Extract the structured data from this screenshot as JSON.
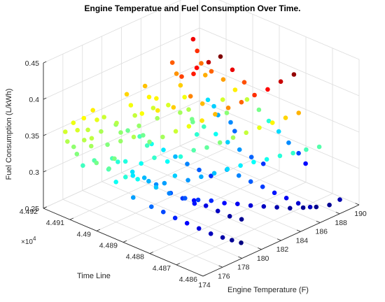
{
  "figure": {
    "title": "Engine Temperatue and Fuel Consumption Over Time."
  },
  "chart_data": {
    "type": "scatter",
    "title": "Engine Temperatue and Fuel Consumption Over Time.",
    "xlabel": "Engine Temperature (F)",
    "ylabel": "Time Line",
    "zlabel": "Fuel Consumption (L/kWh)",
    "x_ticks": [
      "174",
      "176",
      "178",
      "180",
      "182",
      "184",
      "186",
      "188",
      "190"
    ],
    "y_ticks": [
      "4.486",
      "4.487",
      "4.488",
      "4.489",
      "4.49",
      "4.491",
      "4.492"
    ],
    "y_exponent": "×10",
    "y_exponent_power": "4",
    "z_ticks": [
      "0.25",
      "0.3",
      "0.35",
      "0.4",
      "0.45"
    ],
    "xlim": [
      174,
      190
    ],
    "ylim": [
      44860,
      44920
    ],
    "zlim": [
      0.25,
      0.45
    ],
    "colormap": "jet",
    "grid": true,
    "points": [
      [
        174.5,
        44907,
        0.326
      ],
      [
        174.8,
        44903,
        0.334
      ],
      [
        175.0,
        44899,
        0.331
      ],
      [
        175.2,
        44913,
        0.338
      ],
      [
        175.4,
        44906,
        0.329
      ],
      [
        175.6,
        44895,
        0.322
      ],
      [
        175.9,
        44909,
        0.341
      ],
      [
        176.1,
        44901,
        0.335
      ],
      [
        176.3,
        44893,
        0.318
      ],
      [
        176.5,
        44911,
        0.345
      ],
      [
        176.7,
        44904,
        0.327
      ],
      [
        176.9,
        44897,
        0.313
      ],
      [
        177.1,
        44889,
        0.308
      ],
      [
        177.3,
        44908,
        0.336
      ],
      [
        177.5,
        44902,
        0.321
      ],
      [
        177.7,
        44894,
        0.305
      ],
      [
        177.9,
        44887,
        0.298
      ],
      [
        178.1,
        44906,
        0.339
      ],
      [
        178.3,
        44899,
        0.318
      ],
      [
        178.5,
        44891,
        0.302
      ],
      [
        178.7,
        44884,
        0.291
      ],
      [
        178.9,
        44904,
        0.343
      ],
      [
        179.1,
        44897,
        0.324
      ],
      [
        179.3,
        44890,
        0.309
      ],
      [
        179.5,
        44882,
        0.287
      ],
      [
        179.7,
        44901,
        0.336
      ],
      [
        179.9,
        44895,
        0.317
      ],
      [
        180.1,
        44888,
        0.301
      ],
      [
        180.3,
        44880,
        0.284
      ],
      [
        180.5,
        44899,
        0.341
      ],
      [
        180.7,
        44893,
        0.322
      ],
      [
        180.9,
        44886,
        0.304
      ],
      [
        181.1,
        44878,
        0.279
      ],
      [
        181.3,
        44897,
        0.347
      ],
      [
        181.5,
        44891,
        0.329
      ],
      [
        181.7,
        44884,
        0.307
      ],
      [
        181.9,
        44876,
        0.276
      ],
      [
        182.1,
        44895,
        0.352
      ],
      [
        182.3,
        44889,
        0.331
      ],
      [
        182.5,
        44882,
        0.311
      ],
      [
        182.7,
        44874,
        0.272
      ],
      [
        182.9,
        44893,
        0.358
      ],
      [
        183.1,
        44887,
        0.336
      ],
      [
        183.3,
        44880,
        0.314
      ],
      [
        183.5,
        44872,
        0.269
      ],
      [
        183.7,
        44891,
        0.365
      ],
      [
        183.9,
        44885,
        0.341
      ],
      [
        184.1,
        44878,
        0.317
      ],
      [
        184.3,
        44870,
        0.266
      ],
      [
        184.5,
        44889,
        0.372
      ],
      [
        184.7,
        44883,
        0.346
      ],
      [
        184.9,
        44876,
        0.319
      ],
      [
        185.1,
        44868,
        0.263
      ],
      [
        185.3,
        44887,
        0.378
      ],
      [
        185.5,
        44881,
        0.351
      ],
      [
        185.7,
        44874,
        0.322
      ],
      [
        185.9,
        44866,
        0.262
      ],
      [
        186.1,
        44885,
        0.386
      ],
      [
        186.3,
        44879,
        0.356
      ],
      [
        186.5,
        44872,
        0.324
      ],
      [
        186.7,
        44864,
        0.261
      ],
      [
        186.9,
        44883,
        0.392
      ],
      [
        187.1,
        44877,
        0.361
      ],
      [
        187.3,
        44870,
        0.327
      ],
      [
        187.5,
        44862,
        0.262
      ],
      [
        187.7,
        44881,
        0.401
      ],
      [
        187.9,
        44875,
        0.366
      ],
      [
        188.1,
        44868,
        0.329
      ],
      [
        188.3,
        44861,
        0.266
      ],
      [
        188.5,
        44879,
        0.409
      ],
      [
        175.3,
        44891,
        0.302
      ],
      [
        175.8,
        44886,
        0.294
      ],
      [
        176.2,
        44883,
        0.289
      ],
      [
        176.6,
        44880,
        0.283
      ],
      [
        177.0,
        44877,
        0.278
      ],
      [
        177.4,
        44874,
        0.273
      ],
      [
        177.8,
        44871,
        0.268
      ],
      [
        178.2,
        44868,
        0.265
      ],
      [
        178.6,
        44866,
        0.262
      ],
      [
        179.0,
        44864,
        0.259
      ],
      [
        179.4,
        44917,
        0.347
      ],
      [
        179.8,
        44914,
        0.339
      ],
      [
        180.2,
        44911,
        0.333
      ],
      [
        180.6,
        44908,
        0.327
      ],
      [
        181.0,
        44905,
        0.319
      ],
      [
        181.4,
        44902,
        0.313
      ],
      [
        181.8,
        44899,
        0.306
      ],
      [
        182.2,
        44896,
        0.298
      ],
      [
        182.6,
        44893,
        0.292
      ],
      [
        183.0,
        44890,
        0.286
      ],
      [
        183.4,
        44912,
        0.356
      ],
      [
        183.8,
        44909,
        0.349
      ],
      [
        184.2,
        44906,
        0.341
      ],
      [
        184.6,
        44903,
        0.334
      ],
      [
        185.0,
        44900,
        0.326
      ],
      [
        185.4,
        44897,
        0.318
      ],
      [
        185.8,
        44894,
        0.309
      ],
      [
        186.2,
        44891,
        0.301
      ],
      [
        186.6,
        44888,
        0.293
      ],
      [
        187.0,
        44885,
        0.286
      ],
      [
        187.4,
        44906,
        0.378
      ],
      [
        187.8,
        44903,
        0.369
      ],
      [
        188.2,
        44900,
        0.357
      ],
      [
        188.6,
        44897,
        0.346
      ],
      [
        189.0,
        44894,
        0.334
      ],
      [
        189.2,
        44891,
        0.322
      ],
      [
        189.4,
        44888,
        0.311
      ],
      [
        189.6,
        44885,
        0.299
      ],
      [
        189.8,
        44882,
        0.288
      ],
      [
        189.7,
        44879,
        0.279
      ],
      [
        176.0,
        44912,
        0.344
      ],
      [
        176.4,
        44916,
        0.349
      ],
      [
        176.8,
        44919,
        0.352
      ],
      [
        177.2,
        44915,
        0.346
      ],
      [
        177.6,
        44918,
        0.355
      ],
      [
        178.0,
        44913,
        0.342
      ],
      [
        178.4,
        44916,
        0.351
      ],
      [
        178.8,
        44919,
        0.357
      ],
      [
        179.2,
        44910,
        0.338
      ],
      [
        179.6,
        44913,
        0.344
      ],
      [
        180.0,
        44903,
        0.326
      ],
      [
        180.4,
        44906,
        0.333
      ],
      [
        180.8,
        44909,
        0.339
      ],
      [
        181.2,
        44912,
        0.346
      ],
      [
        181.6,
        44915,
        0.353
      ],
      [
        182.0,
        44918,
        0.361
      ],
      [
        182.4,
        44908,
        0.341
      ],
      [
        182.8,
        44911,
        0.348
      ],
      [
        183.2,
        44914,
        0.356
      ],
      [
        183.6,
        44917,
        0.364
      ],
      [
        184.0,
        44899,
        0.323
      ],
      [
        184.4,
        44902,
        0.333
      ],
      [
        184.8,
        44905,
        0.343
      ],
      [
        185.2,
        44908,
        0.353
      ],
      [
        185.6,
        44911,
        0.362
      ],
      [
        186.0,
        44914,
        0.371
      ],
      [
        186.4,
        44917,
        0.379
      ],
      [
        186.8,
        44898,
        0.337
      ],
      [
        187.2,
        44901,
        0.348
      ],
      [
        187.6,
        44909,
        0.367
      ],
      [
        188.0,
        44912,
        0.376
      ],
      [
        188.4,
        44915,
        0.386
      ],
      [
        188.8,
        44918,
        0.395
      ],
      [
        185.9,
        44906,
        0.392
      ],
      [
        186.3,
        44903,
        0.402
      ],
      [
        186.7,
        44900,
        0.412
      ],
      [
        187.1,
        44897,
        0.396
      ],
      [
        184.9,
        44908,
        0.383
      ],
      [
        185.3,
        44905,
        0.389
      ],
      [
        187.5,
        44894,
        0.381
      ],
      [
        183.9,
        44901,
        0.373
      ],
      [
        184.3,
        44898,
        0.365
      ],
      [
        182.7,
        44903,
        0.362
      ],
      [
        181.9,
        44906,
        0.358
      ],
      [
        181.1,
        44909,
        0.354
      ],
      [
        179.9,
        44885,
        0.279
      ],
      [
        180.3,
        44882,
        0.274
      ],
      [
        180.7,
        44879,
        0.269
      ],
      [
        181.1,
        44876,
        0.264
      ],
      [
        181.5,
        44873,
        0.262
      ],
      [
        174.9,
        44896,
        0.318
      ],
      [
        175.5,
        44901,
        0.324
      ],
      [
        174.7,
        44910,
        0.336
      ],
      [
        175.1,
        44915,
        0.343
      ],
      [
        175.7,
        44918,
        0.348
      ],
      [
        177.0,
        44903,
        0.322
      ],
      [
        177.4,
        44899,
        0.312
      ],
      [
        177.8,
        44896,
        0.306
      ],
      [
        178.2,
        44893,
        0.299
      ],
      [
        178.6,
        44889,
        0.291
      ],
      [
        179.0,
        44886,
        0.286
      ],
      [
        179.4,
        44883,
        0.281
      ],
      [
        183.0,
        44884,
        0.304
      ],
      [
        183.4,
        44881,
        0.298
      ],
      [
        183.8,
        44878,
        0.292
      ],
      [
        184.2,
        44875,
        0.287
      ],
      [
        184.6,
        44872,
        0.281
      ],
      [
        185.0,
        44869,
        0.276
      ],
      [
        185.4,
        44866,
        0.271
      ],
      [
        185.8,
        44863,
        0.268
      ],
      [
        188.9,
        44909,
        0.304
      ],
      [
        189.3,
        44912,
        0.309
      ],
      [
        189.5,
        44915,
        0.312
      ],
      [
        189.1,
        44905,
        0.299
      ],
      [
        188.7,
        44902,
        0.294
      ]
    ]
  }
}
